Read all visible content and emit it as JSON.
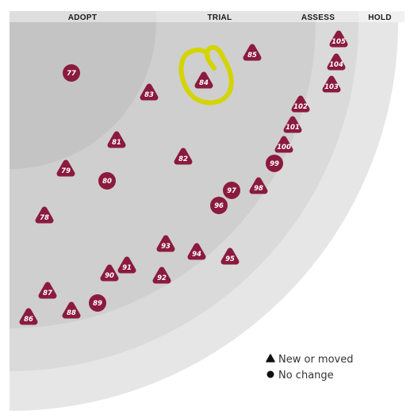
{
  "rings": [
    {
      "name": "ADOPT"
    },
    {
      "name": "TRIAL"
    },
    {
      "name": "ASSESS"
    },
    {
      "name": "HOLD"
    }
  ],
  "blips": [
    {
      "id": "77",
      "shape": "circle"
    },
    {
      "id": "78",
      "shape": "triangle"
    },
    {
      "id": "79",
      "shape": "triangle"
    },
    {
      "id": "80",
      "shape": "circle"
    },
    {
      "id": "81",
      "shape": "triangle"
    },
    {
      "id": "82",
      "shape": "triangle"
    },
    {
      "id": "83",
      "shape": "triangle"
    },
    {
      "id": "84",
      "shape": "triangle"
    },
    {
      "id": "85",
      "shape": "triangle"
    },
    {
      "id": "86",
      "shape": "triangle"
    },
    {
      "id": "87",
      "shape": "triangle"
    },
    {
      "id": "88",
      "shape": "triangle"
    },
    {
      "id": "89",
      "shape": "circle"
    },
    {
      "id": "90",
      "shape": "triangle"
    },
    {
      "id": "91",
      "shape": "triangle"
    },
    {
      "id": "92",
      "shape": "triangle"
    },
    {
      "id": "93",
      "shape": "triangle"
    },
    {
      "id": "94",
      "shape": "triangle"
    },
    {
      "id": "95",
      "shape": "triangle"
    },
    {
      "id": "96",
      "shape": "circle"
    },
    {
      "id": "97",
      "shape": "circle"
    },
    {
      "id": "98",
      "shape": "triangle"
    },
    {
      "id": "99",
      "shape": "circle"
    },
    {
      "id": "100",
      "shape": "triangle"
    },
    {
      "id": "101",
      "shape": "triangle"
    },
    {
      "id": "102",
      "shape": "triangle"
    },
    {
      "id": "103",
      "shape": "triangle"
    },
    {
      "id": "104",
      "shape": "triangle"
    },
    {
      "id": "105",
      "shape": "triangle"
    }
  ],
  "legend": {
    "new_or_moved": "New or moved",
    "no_change": "No change"
  },
  "colors": {
    "blip": "#8b1a3f",
    "ring_adopt": "#c4c4c4",
    "ring_trial": "#cfcfcf",
    "ring_assess": "#dadada",
    "ring_hold": "#e6e6e6",
    "header_band": "#e2e2e2",
    "annotation": "#d4d400"
  },
  "annotation": {
    "type": "hand-drawn circle",
    "around_blip": "84"
  }
}
